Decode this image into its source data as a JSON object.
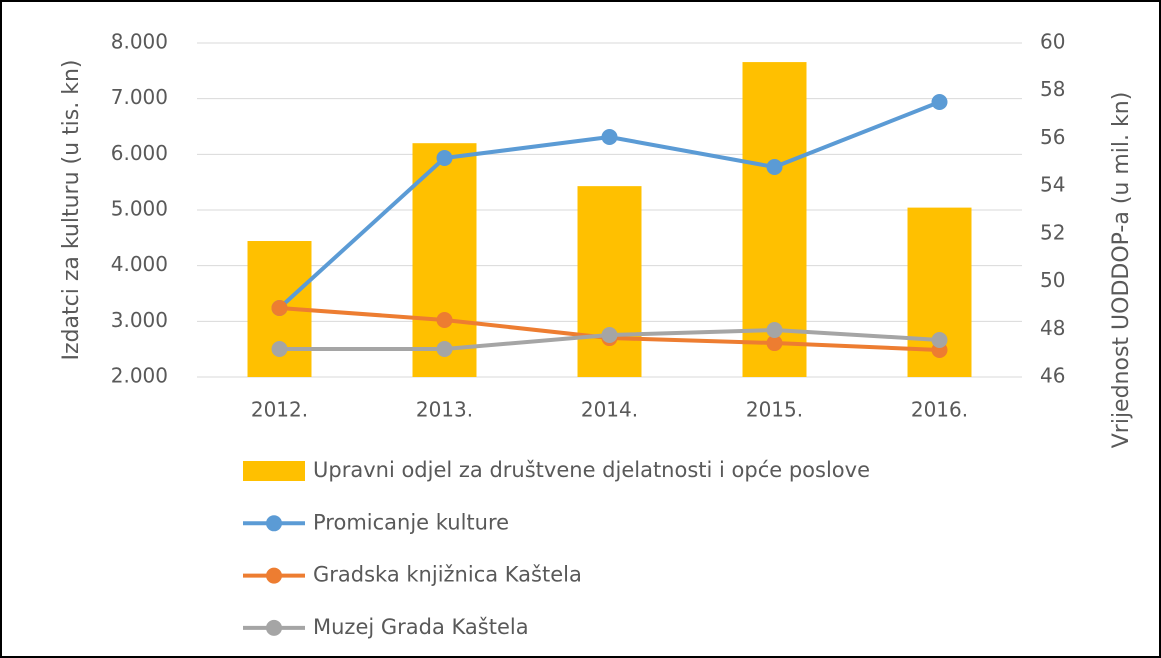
{
  "chart_data": {
    "type": "bar",
    "y_label": "Izdatci za kulturu (u tis. kn)",
    "y2_label": "Vrijednost  UODDOP-a (u mil. kn)",
    "categories": [
      "2012.",
      "2013.",
      "2014.",
      "2015.",
      "2016."
    ],
    "series": [
      {
        "name": "Upravni odjel za društvene djelatnosti i opće poslove",
        "type": "bar",
        "axis": "y2",
        "color": "#ffc000",
        "values": [
          51.7,
          55.8,
          54.0,
          59.2,
          53.1
        ]
      },
      {
        "name": "Promicanje kulture",
        "type": "line",
        "color": "#5b9bd5",
        "values": [
          3240,
          5934,
          6311,
          5772,
          6940
        ]
      },
      {
        "name": "Gradska knjižnica Kaštela",
        "type": "line",
        "color": "#ed7d31",
        "values": [
          3240,
          3024,
          2700,
          2610,
          2485
        ]
      },
      {
        "name": "Muzej Grada Kaštela",
        "type": "line",
        "color": "#a5a5a5",
        "values": [
          2503,
          2503,
          2754,
          2844,
          2665
        ]
      }
    ],
    "ylim": [
      2000,
      8000
    ],
    "yticks": [
      {
        "value": 2000,
        "label": "2.000"
      },
      {
        "value": 3000,
        "label": "3.000"
      },
      {
        "value": 4000,
        "label": "4.000"
      },
      {
        "value": 5000,
        "label": "5.000"
      },
      {
        "value": 6000,
        "label": "6.000"
      },
      {
        "value": 7000,
        "label": "7.000"
      },
      {
        "value": 8000,
        "label": "8.000"
      }
    ],
    "y2lim": [
      46,
      60
    ],
    "y2ticks": [
      46,
      48,
      50,
      52,
      54,
      56,
      58,
      60
    ],
    "grid": true
  }
}
